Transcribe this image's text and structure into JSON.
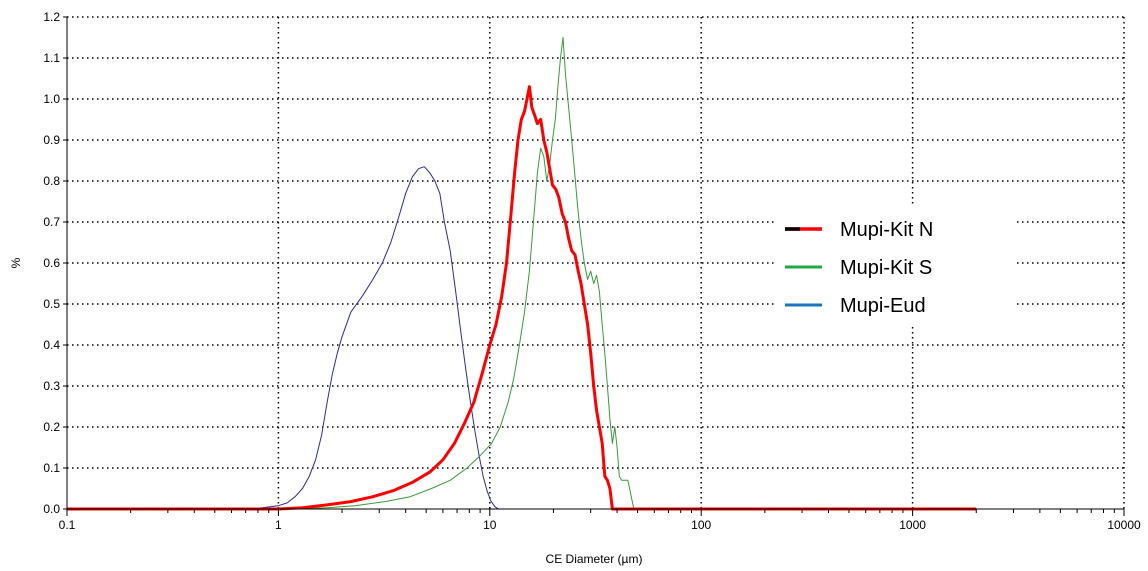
{
  "chart_data": {
    "type": "line",
    "title": "",
    "xlabel": "CE Diameter (µm)",
    "ylabel": "%",
    "x_scale": "log",
    "xlim": [
      0.1,
      10000
    ],
    "ylim": [
      0.0,
      1.2
    ],
    "grid": true,
    "legend_position": "center-right",
    "x_ticks": [
      "0.1",
      "1",
      "10",
      "100",
      "1000",
      "10000"
    ],
    "y_ticks": [
      "0.0",
      "0.1",
      "0.2",
      "0.3",
      "0.4",
      "0.5",
      "0.6",
      "0.7",
      "0.8",
      "0.9",
      "1.0",
      "1.1",
      "1.2"
    ],
    "series": [
      {
        "name": "Mupi-Kit N",
        "color": "#ff0000",
        "legend_marker_color": "#000000",
        "line_width": "thick",
        "points": [
          [
            0.1,
            0.0
          ],
          [
            1.0,
            0.0
          ],
          [
            1.3,
            0.003
          ],
          [
            1.7,
            0.01
          ],
          [
            2.2,
            0.018
          ],
          [
            2.8,
            0.03
          ],
          [
            3.5,
            0.045
          ],
          [
            4.3,
            0.065
          ],
          [
            5.2,
            0.09
          ],
          [
            6.0,
            0.12
          ],
          [
            6.8,
            0.16
          ],
          [
            7.6,
            0.21
          ],
          [
            8.4,
            0.26
          ],
          [
            9.2,
            0.33
          ],
          [
            10.0,
            0.4
          ],
          [
            10.7,
            0.45
          ],
          [
            11.4,
            0.52
          ],
          [
            12.0,
            0.6
          ],
          [
            12.6,
            0.72
          ],
          [
            13.1,
            0.82
          ],
          [
            13.6,
            0.9
          ],
          [
            14.1,
            0.95
          ],
          [
            14.6,
            0.97
          ],
          [
            15.0,
            1.0
          ],
          [
            15.4,
            1.03
          ],
          [
            15.8,
            0.98
          ],
          [
            16.3,
            0.96
          ],
          [
            16.8,
            0.94
          ],
          [
            17.4,
            0.95
          ],
          [
            18.0,
            0.9
          ],
          [
            18.6,
            0.87
          ],
          [
            19.2,
            0.83
          ],
          [
            19.8,
            0.79
          ],
          [
            20.5,
            0.78
          ],
          [
            21.2,
            0.76
          ],
          [
            22.0,
            0.72
          ],
          [
            22.8,
            0.7
          ],
          [
            23.6,
            0.66
          ],
          [
            24.4,
            0.63
          ],
          [
            25.3,
            0.62
          ],
          [
            26.2,
            0.58
          ],
          [
            27.0,
            0.55
          ],
          [
            28.0,
            0.5
          ],
          [
            29.0,
            0.45
          ],
          [
            30.0,
            0.38
          ],
          [
            31.0,
            0.3
          ],
          [
            32.0,
            0.24
          ],
          [
            33.0,
            0.2
          ],
          [
            34.0,
            0.16
          ],
          [
            35.0,
            0.08
          ],
          [
            36.0,
            0.07
          ],
          [
            37.0,
            0.05
          ],
          [
            38.0,
            0.0
          ],
          [
            2000,
            0.0
          ]
        ]
      },
      {
        "name": "Mupi-Kit S",
        "color": "#3a9a3a",
        "legend_marker_color": "#22aa44",
        "line_width": "thin",
        "points": [
          [
            0.1,
            0.0
          ],
          [
            1.2,
            0.0
          ],
          [
            1.7,
            0.003
          ],
          [
            2.3,
            0.008
          ],
          [
            3.2,
            0.018
          ],
          [
            4.2,
            0.03
          ],
          [
            5.3,
            0.05
          ],
          [
            6.5,
            0.07
          ],
          [
            7.8,
            0.1
          ],
          [
            9.0,
            0.13
          ],
          [
            10.2,
            0.16
          ],
          [
            11.2,
            0.2
          ],
          [
            12.2,
            0.26
          ],
          [
            13.0,
            0.32
          ],
          [
            13.8,
            0.4
          ],
          [
            14.6,
            0.48
          ],
          [
            15.4,
            0.58
          ],
          [
            16.2,
            0.72
          ],
          [
            16.8,
            0.82
          ],
          [
            17.4,
            0.88
          ],
          [
            18.0,
            0.86
          ],
          [
            18.6,
            0.8
          ],
          [
            19.2,
            0.84
          ],
          [
            19.8,
            0.9
          ],
          [
            20.4,
            0.95
          ],
          [
            21.0,
            1.03
          ],
          [
            21.6,
            1.1
          ],
          [
            22.2,
            1.15
          ],
          [
            22.8,
            1.06
          ],
          [
            23.6,
            0.98
          ],
          [
            24.4,
            0.9
          ],
          [
            25.2,
            0.82
          ],
          [
            26.0,
            0.74
          ],
          [
            27.0,
            0.66
          ],
          [
            28.0,
            0.6
          ],
          [
            29.0,
            0.56
          ],
          [
            30.0,
            0.58
          ],
          [
            31.0,
            0.55
          ],
          [
            32.0,
            0.57
          ],
          [
            33.0,
            0.53
          ],
          [
            34.0,
            0.45
          ],
          [
            35.0,
            0.38
          ],
          [
            36.0,
            0.3
          ],
          [
            37.0,
            0.22
          ],
          [
            38.0,
            0.16
          ],
          [
            39.0,
            0.2
          ],
          [
            40.0,
            0.15
          ],
          [
            41.0,
            0.08
          ],
          [
            42.0,
            0.07
          ],
          [
            45.0,
            0.07
          ],
          [
            48.0,
            0.0
          ],
          [
            2000,
            0.0
          ]
        ]
      },
      {
        "name": "Mupi-Eud",
        "color": "#2a2aaa",
        "legend_marker_color": "#1e73be",
        "line_width": "thin",
        "points": [
          [
            0.1,
            0.0
          ],
          [
            0.6,
            0.0
          ],
          [
            0.8,
            0.002
          ],
          [
            1.0,
            0.008
          ],
          [
            1.1,
            0.015
          ],
          [
            1.2,
            0.03
          ],
          [
            1.3,
            0.05
          ],
          [
            1.4,
            0.08
          ],
          [
            1.5,
            0.12
          ],
          [
            1.6,
            0.18
          ],
          [
            1.7,
            0.26
          ],
          [
            1.8,
            0.33
          ],
          [
            1.9,
            0.38
          ],
          [
            2.0,
            0.42
          ],
          [
            2.2,
            0.48
          ],
          [
            2.5,
            0.52
          ],
          [
            2.8,
            0.56
          ],
          [
            3.1,
            0.6
          ],
          [
            3.4,
            0.65
          ],
          [
            3.7,
            0.71
          ],
          [
            4.0,
            0.77
          ],
          [
            4.3,
            0.81
          ],
          [
            4.6,
            0.83
          ],
          [
            4.9,
            0.835
          ],
          [
            5.2,
            0.82
          ],
          [
            5.5,
            0.8
          ],
          [
            5.8,
            0.77
          ],
          [
            6.1,
            0.7
          ],
          [
            6.5,
            0.63
          ],
          [
            6.9,
            0.53
          ],
          [
            7.3,
            0.43
          ],
          [
            7.7,
            0.34
          ],
          [
            8.1,
            0.26
          ],
          [
            8.5,
            0.19
          ],
          [
            8.9,
            0.13
          ],
          [
            9.3,
            0.08
          ],
          [
            9.7,
            0.045
          ],
          [
            10.1,
            0.02
          ],
          [
            10.6,
            0.005
          ],
          [
            11.0,
            0.0
          ],
          [
            2000,
            0.0
          ]
        ]
      }
    ]
  }
}
